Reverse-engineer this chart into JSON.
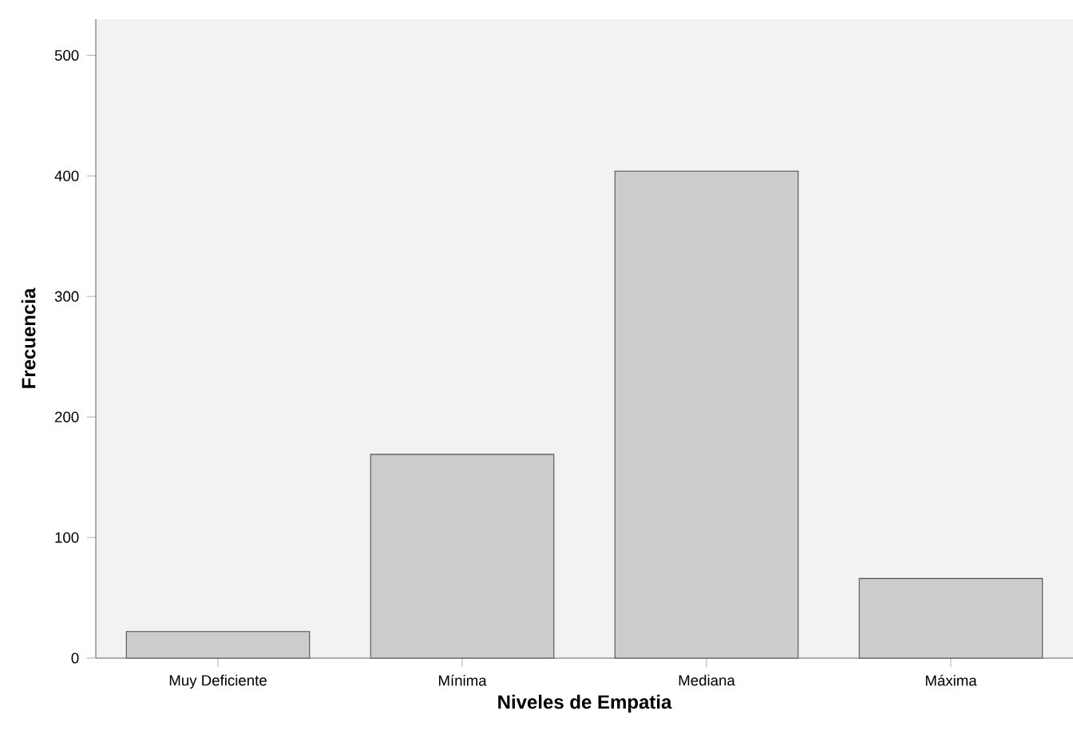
{
  "chart_data": {
    "type": "bar",
    "xlabel": "Niveles de Empatia",
    "ylabel": "Frecuencia",
    "categories": [
      "Muy Deficiente",
      "Mínima",
      "Mediana",
      "Máxima"
    ],
    "values": [
      22,
      169,
      404,
      66
    ],
    "color": "#cccccc",
    "ylim": [
      0,
      530
    ],
    "yticks": [
      0,
      100,
      200,
      300,
      400,
      500
    ]
  }
}
